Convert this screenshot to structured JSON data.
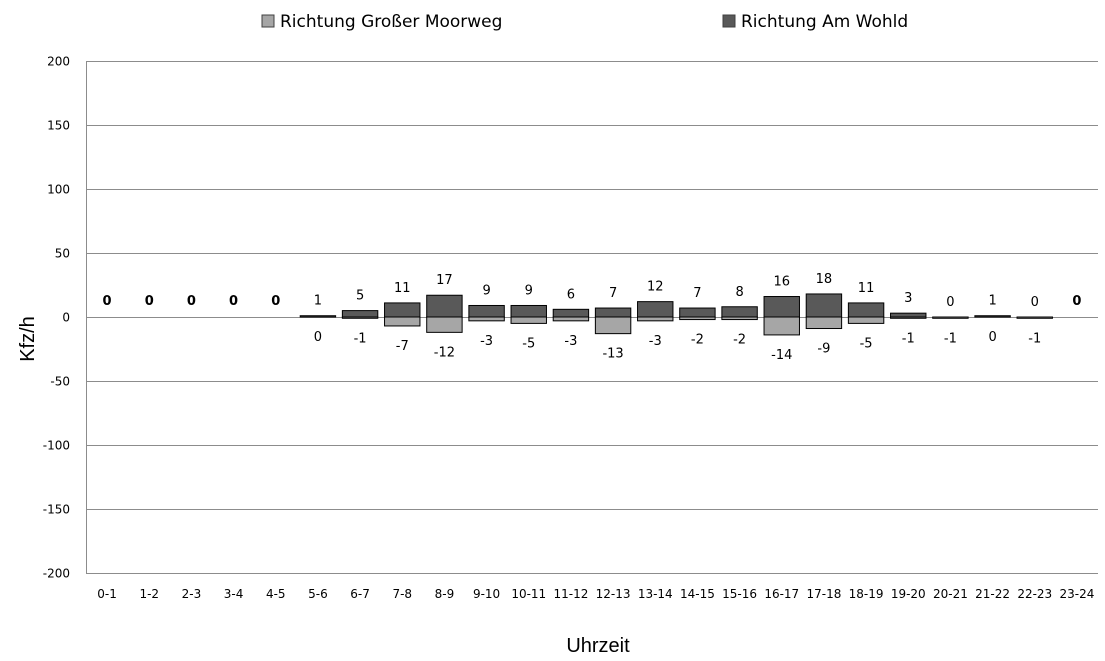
{
  "chart_data": {
    "type": "bar",
    "xlabel": "Uhrzeit",
    "ylabel": "Kfz/h",
    "ylim": [
      -200,
      200
    ],
    "yticks": [
      200,
      150,
      100,
      50,
      0,
      -50,
      -100,
      -150,
      -200
    ],
    "grid": true,
    "legend_position": "top",
    "categories": [
      "0-1",
      "1-2",
      "2-3",
      "3-4",
      "4-5",
      "5-6",
      "6-7",
      "7-8",
      "8-9",
      "9-10",
      "10-11",
      "11-12",
      "12-13",
      "13-14",
      "14-15",
      "15-16",
      "16-17",
      "17-18",
      "18-19",
      "19-20",
      "20-21",
      "21-22",
      "22-23",
      "23-24"
    ],
    "series": [
      {
        "name": "Richtung Großer Moorweg",
        "color": "#a6a6a6",
        "values": [
          0,
          0,
          0,
          0,
          0,
          0,
          -1,
          -7,
          -12,
          -3,
          -5,
          -3,
          -13,
          -3,
          -2,
          -2,
          -14,
          -9,
          -5,
          -1,
          -1,
          0,
          -1,
          0
        ],
        "labels": [
          "",
          "",
          "",
          "",
          "",
          "0",
          "-1",
          "-7",
          "-12",
          "-3",
          "-5",
          "-3",
          "-13",
          "-3",
          "-2",
          "-2",
          "-14",
          "-9",
          "-5",
          "-1",
          "-1",
          "0",
          "-1",
          ""
        ]
      },
      {
        "name": "Richtung Am Wohld",
        "color": "#595959",
        "values": [
          0,
          0,
          0,
          0,
          0,
          1,
          5,
          11,
          17,
          9,
          9,
          6,
          7,
          12,
          7,
          8,
          16,
          18,
          11,
          3,
          0,
          1,
          0,
          0
        ],
        "labels": [
          "",
          "",
          "",
          "",
          "",
          "1",
          "5",
          "11",
          "17",
          "9",
          "9",
          "6",
          "7",
          "12",
          "7",
          "8",
          "16",
          "18",
          "11",
          "3",
          "0",
          "1",
          "0",
          ""
        ]
      }
    ],
    "total_labels": [
      "0",
      "0",
      "0",
      "0",
      "0",
      "",
      "",
      "",
      "",
      "",
      "",
      "",
      "",
      "",
      "",
      "",
      "",
      "",
      "",
      "",
      "",
      "",
      "",
      "0"
    ]
  }
}
